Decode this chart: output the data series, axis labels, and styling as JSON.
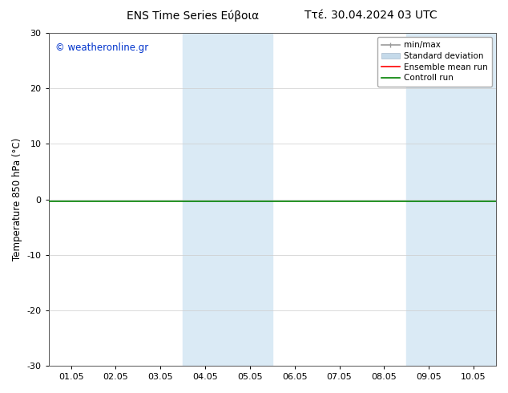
{
  "title_left": "ENS Time Series Εύβοια",
  "title_right": "Ττέ. 30.04.2024 03 UTC",
  "ylabel": "Temperature 850 hPa (°C)",
  "watermark": "© weatheronline.gr",
  "xtick_labels": [
    "01.05",
    "02.05",
    "03.05",
    "04.05",
    "05.05",
    "06.05",
    "07.05",
    "08.05",
    "09.05",
    "10.05"
  ],
  "xtick_positions": [
    1,
    2,
    3,
    4,
    5,
    6,
    7,
    8,
    9,
    10
  ],
  "xlim": [
    0.5,
    10.5
  ],
  "ylim": [
    -30,
    30
  ],
  "yticks": [
    -30,
    -20,
    -10,
    0,
    10,
    20,
    30
  ],
  "shaded_bands": [
    {
      "x_start": 3.5,
      "x_end": 5.5,
      "color": "#daeaf5"
    },
    {
      "x_start": 8.5,
      "x_end": 10.5,
      "color": "#daeaf5"
    }
  ],
  "control_run_y": -0.3,
  "ensemble_mean_y": -0.3,
  "legend_entries": [
    {
      "label": "min/max",
      "color": "#999999",
      "lw": 1.2
    },
    {
      "label": "Standard deviation",
      "color": "#c5daea",
      "lw": 8
    },
    {
      "label": "Ensemble mean run",
      "color": "red",
      "lw": 1.2
    },
    {
      "label": "Controll run",
      "color": "green",
      "lw": 1.2
    }
  ],
  "bg_color": "#ffffff",
  "spine_color": "#555555",
  "grid_color": "#cccccc",
  "watermark_color": "#0033cc",
  "title_fontsize": 10,
  "axis_label_fontsize": 8.5,
  "tick_fontsize": 8,
  "legend_fontsize": 7.5
}
